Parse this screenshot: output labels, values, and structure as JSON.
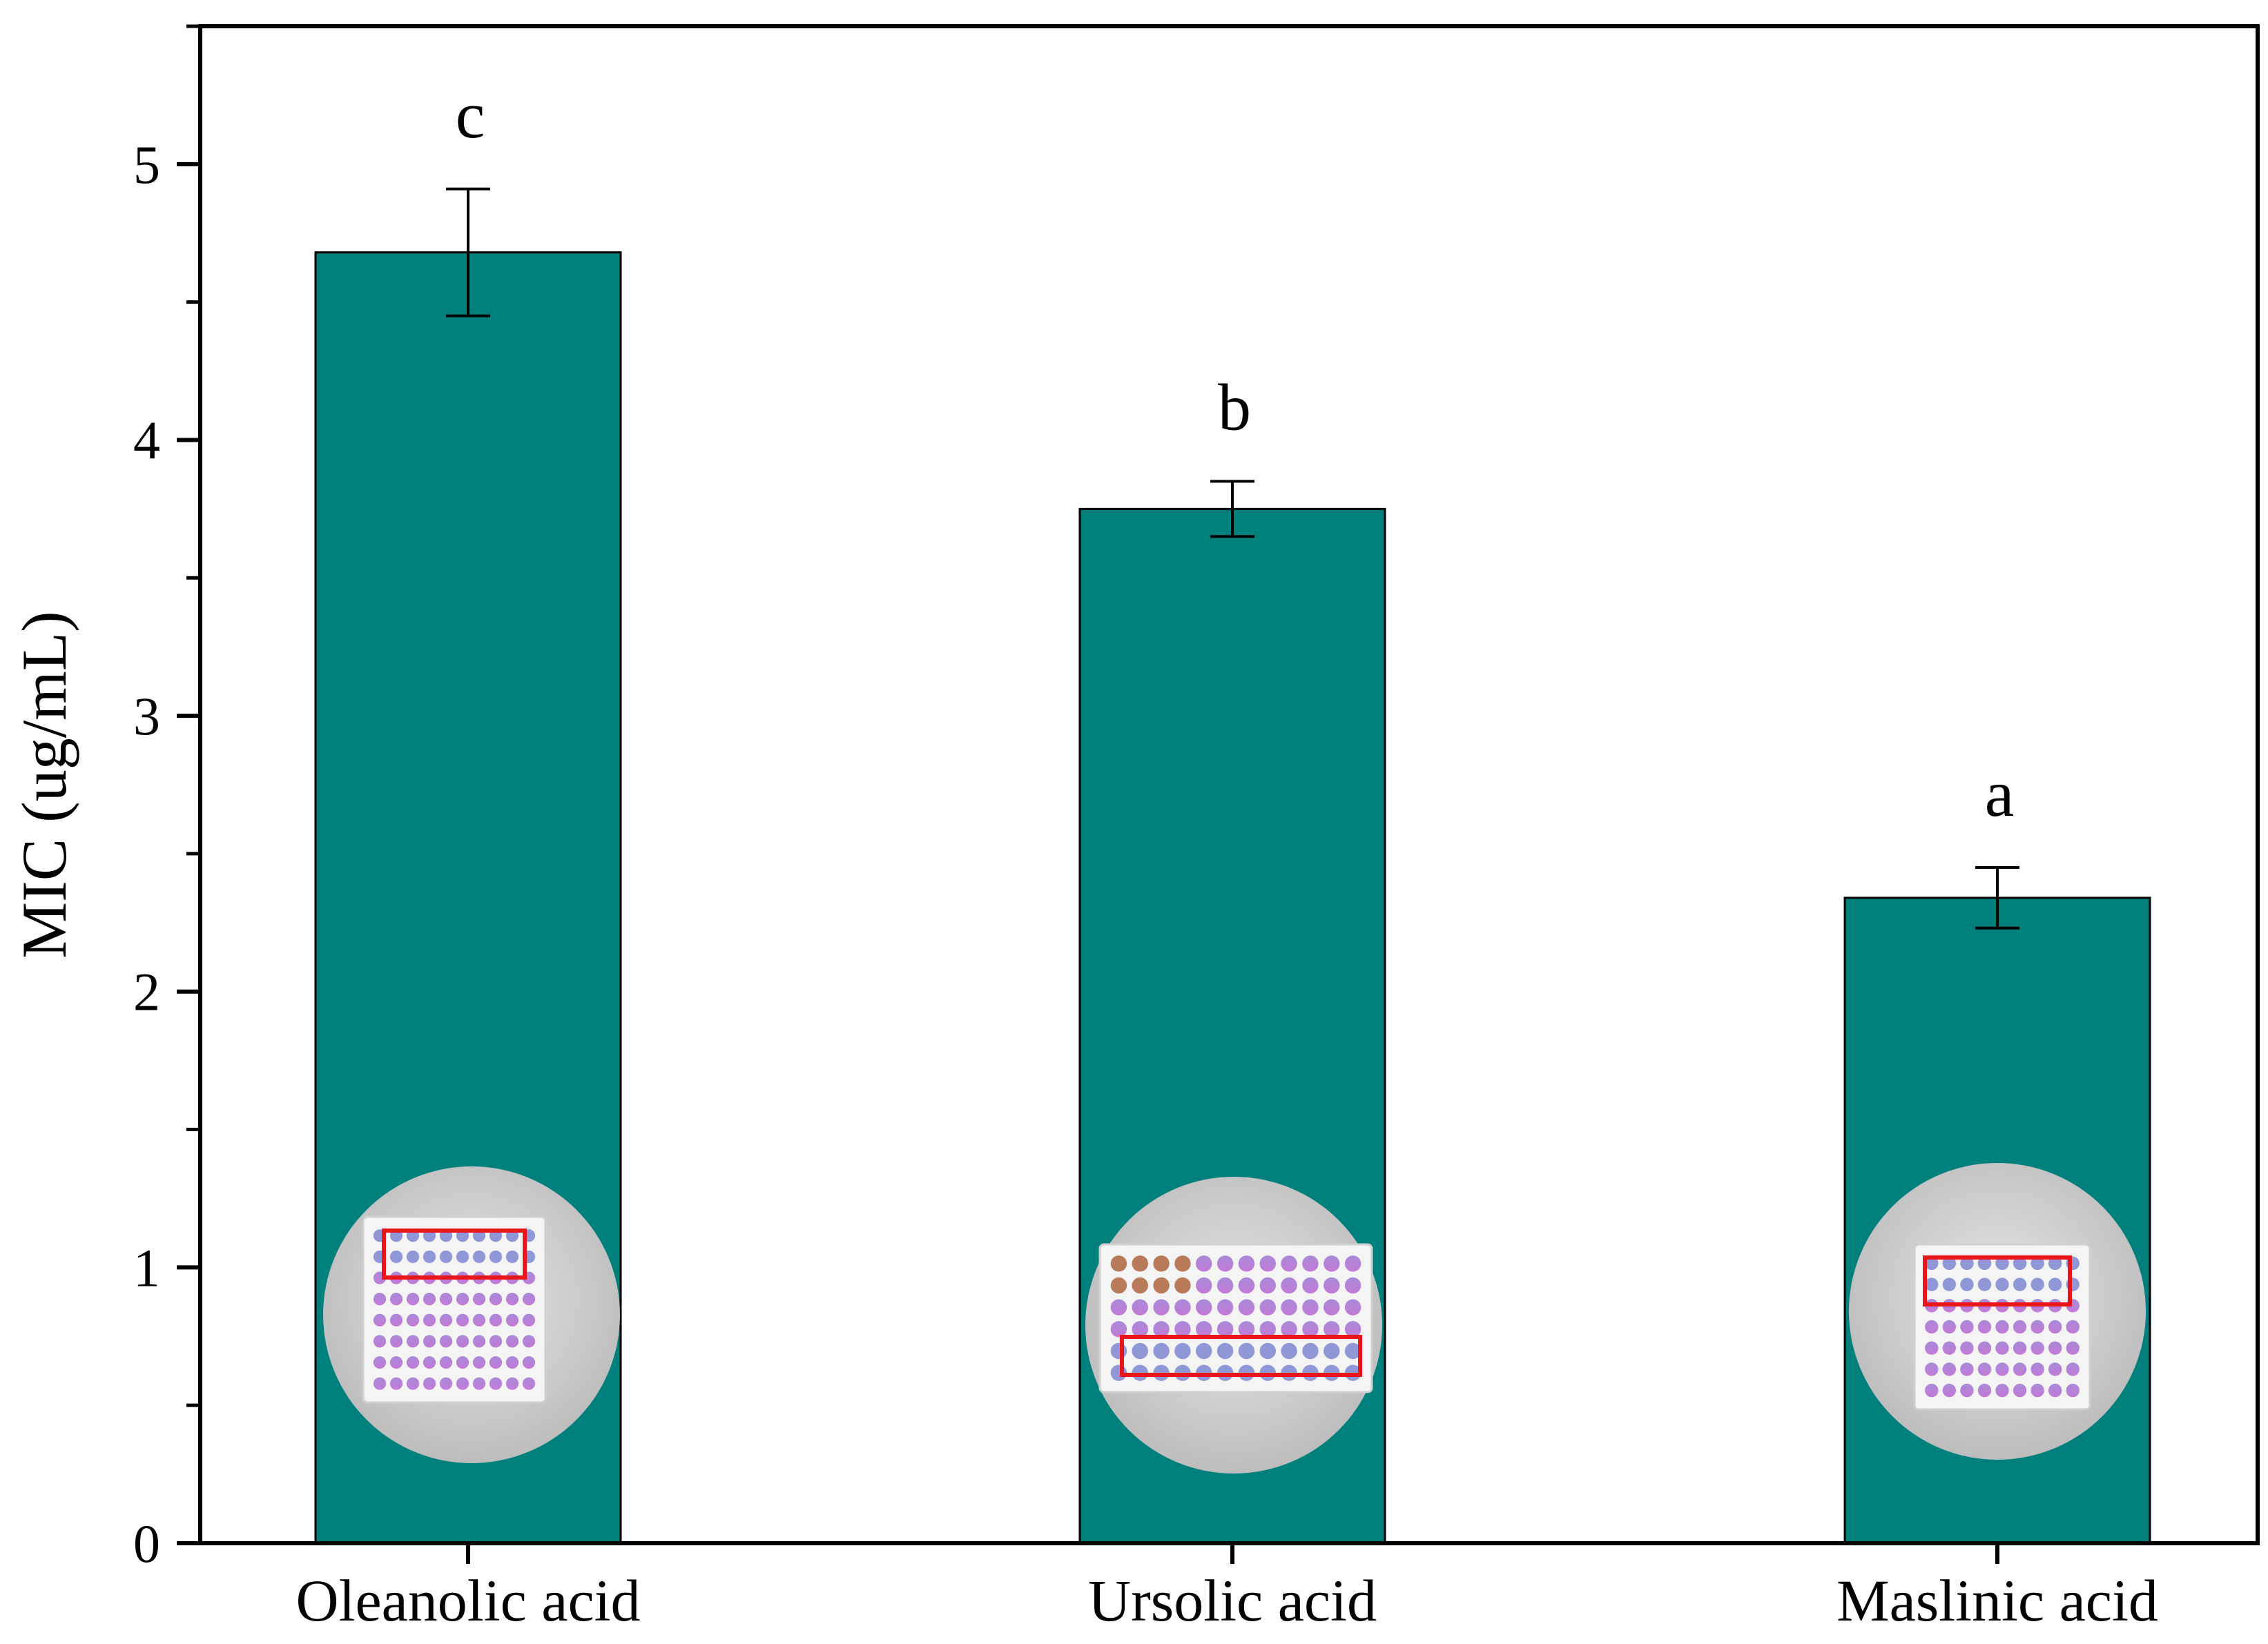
{
  "chart_data": {
    "type": "bar",
    "categories": [
      "Oleanolic acid",
      "Ursolic acid",
      "Maslinic acid"
    ],
    "values": [
      4.68,
      3.75,
      2.34
    ],
    "errors": [
      0.23,
      0.1,
      0.11
    ],
    "significance": [
      "c",
      "b",
      "a"
    ],
    "ylabel": "MIC (ug/mL)",
    "ylim": [
      0,
      5.5
    ],
    "yticks": [
      0,
      1,
      2,
      3,
      4,
      5
    ],
    "grid": false,
    "bar_color": "#00807d",
    "inset_images": [
      "plate-photo",
      "plate-photo",
      "plate-photo"
    ]
  }
}
